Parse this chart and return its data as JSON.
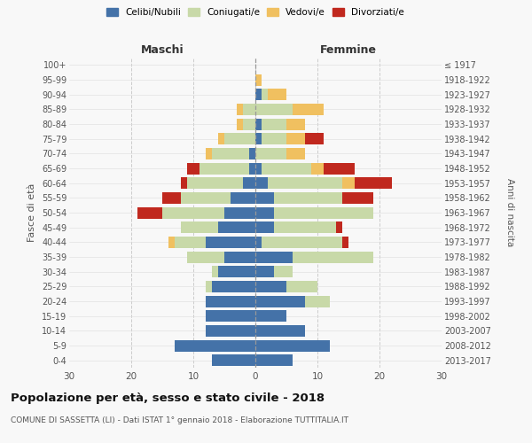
{
  "age_groups": [
    "0-4",
    "5-9",
    "10-14",
    "15-19",
    "20-24",
    "25-29",
    "30-34",
    "35-39",
    "40-44",
    "45-49",
    "50-54",
    "55-59",
    "60-64",
    "65-69",
    "70-74",
    "75-79",
    "80-84",
    "85-89",
    "90-94",
    "95-99",
    "100+"
  ],
  "birth_years": [
    "2013-2017",
    "2008-2012",
    "2003-2007",
    "1998-2002",
    "1993-1997",
    "1988-1992",
    "1983-1987",
    "1978-1982",
    "1973-1977",
    "1968-1972",
    "1963-1967",
    "1958-1962",
    "1953-1957",
    "1948-1952",
    "1943-1947",
    "1938-1942",
    "1933-1937",
    "1928-1932",
    "1923-1927",
    "1918-1922",
    "≤ 1917"
  ],
  "males": {
    "celibe": [
      7,
      13,
      8,
      8,
      8,
      7,
      6,
      5,
      8,
      6,
      5,
      4,
      2,
      1,
      1,
      0,
      0,
      0,
      0,
      0,
      0
    ],
    "coniugato": [
      0,
      0,
      0,
      0,
      0,
      1,
      1,
      6,
      5,
      6,
      10,
      8,
      9,
      8,
      6,
      5,
      2,
      2,
      0,
      0,
      0
    ],
    "vedovo": [
      0,
      0,
      0,
      0,
      0,
      0,
      0,
      0,
      1,
      0,
      0,
      0,
      0,
      0,
      1,
      1,
      1,
      1,
      0,
      0,
      0
    ],
    "divorziato": [
      0,
      0,
      0,
      0,
      0,
      0,
      0,
      0,
      0,
      0,
      4,
      3,
      1,
      2,
      0,
      0,
      0,
      0,
      0,
      0,
      0
    ]
  },
  "females": {
    "nubile": [
      6,
      12,
      8,
      5,
      8,
      5,
      3,
      6,
      1,
      3,
      3,
      3,
      2,
      1,
      0,
      1,
      1,
      0,
      1,
      0,
      0
    ],
    "coniugata": [
      0,
      0,
      0,
      0,
      4,
      5,
      3,
      13,
      13,
      10,
      16,
      11,
      12,
      8,
      5,
      4,
      4,
      6,
      1,
      0,
      0
    ],
    "vedova": [
      0,
      0,
      0,
      0,
      0,
      0,
      0,
      0,
      0,
      0,
      0,
      0,
      2,
      2,
      3,
      3,
      3,
      5,
      3,
      1,
      0
    ],
    "divorziata": [
      0,
      0,
      0,
      0,
      0,
      0,
      0,
      0,
      1,
      1,
      0,
      5,
      6,
      5,
      0,
      3,
      0,
      0,
      0,
      0,
      0
    ]
  },
  "color_celibe": "#4472a8",
  "color_coniugato": "#c8d9a8",
  "color_vedovo": "#f0c060",
  "color_divorziato": "#c0281e",
  "title": "Popolazione per età, sesso e stato civile - 2018",
  "subtitle": "COMUNE DI SASSETTA (LI) - Dati ISTAT 1° gennaio 2018 - Elaborazione TUTTITALIA.IT",
  "xlabel_left": "Maschi",
  "xlabel_right": "Femmine",
  "ylabel": "Fasce di età",
  "ylabel_right": "Anni di nascita",
  "xlim": 30,
  "legend_labels": [
    "Celibi/Nubili",
    "Coniugati/e",
    "Vedovi/e",
    "Divorziati/e"
  ],
  "background_color": "#f8f8f8"
}
